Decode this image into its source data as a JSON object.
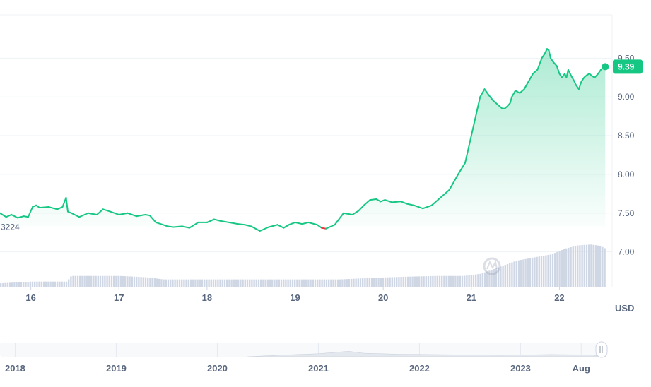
{
  "chart_data": {
    "type": "line",
    "unit": "USD",
    "y_ticks": [
      "9.50",
      "9.00",
      "8.50",
      "8.00",
      "7.50",
      "7.00"
    ],
    "y_tick_values": [
      9.5,
      9.0,
      8.5,
      8.0,
      7.5,
      7.0
    ],
    "ylim": [
      6.55,
      10.05
    ],
    "x_ticks": [
      "16",
      "17",
      "18",
      "19",
      "20",
      "21",
      "22"
    ],
    "x_tick_positions": [
      16,
      17,
      18,
      19,
      20,
      21,
      22
    ],
    "xlim": [
      15.65,
      22.55
    ],
    "baseline_label": "3224",
    "baseline_value": 7.32,
    "current_price_label": "9.39",
    "current_price": 9.39,
    "colors": {
      "up": "#16c784",
      "down": "#ea3943",
      "volume": "#cfd6e4",
      "grid": "#eff2f5"
    },
    "series": [
      {
        "x": [
          15.65,
          15.72,
          15.78,
          15.85,
          15.92,
          15.97,
          16.02,
          16.06,
          16.1,
          16.2,
          16.3,
          16.36,
          16.4,
          16.42,
          16.46,
          16.55,
          16.65,
          16.75,
          16.82,
          16.9,
          17.0,
          17.1,
          17.2,
          17.3,
          17.35,
          17.42,
          17.5,
          17.55,
          17.62,
          17.72,
          17.8,
          17.9,
          18.0,
          18.08,
          18.15,
          18.25,
          18.35,
          18.43,
          18.5,
          18.6,
          18.7,
          18.8,
          18.87,
          18.93,
          19.0,
          19.08,
          19.15,
          19.25,
          19.3,
          19.35,
          19.45,
          19.55,
          19.65,
          19.72,
          19.78,
          19.85,
          19.92,
          19.97,
          20.02,
          20.1,
          20.2,
          20.27,
          20.35,
          20.45,
          20.55,
          20.65,
          20.75,
          20.85,
          20.93,
          21.0,
          21.05,
          21.1,
          21.15,
          21.2,
          21.25,
          21.3,
          21.35,
          21.38,
          21.41,
          21.44,
          21.46,
          21.5,
          21.55,
          21.6,
          21.65,
          21.7,
          21.75,
          21.8,
          21.83,
          21.86,
          21.88,
          21.9,
          21.93,
          21.97,
          22.0,
          22.03,
          22.06,
          22.08,
          22.1,
          22.13,
          22.16,
          22.19,
          22.22,
          22.25,
          22.28,
          22.31,
          22.34,
          22.37,
          22.4,
          22.44,
          22.47,
          22.5,
          22.52
        ],
        "y": [
          7.5,
          7.45,
          7.48,
          7.44,
          7.46,
          7.45,
          7.58,
          7.6,
          7.57,
          7.58,
          7.55,
          7.58,
          7.7,
          7.52,
          7.5,
          7.45,
          7.5,
          7.48,
          7.55,
          7.52,
          7.48,
          7.5,
          7.46,
          7.48,
          7.47,
          7.38,
          7.35,
          7.33,
          7.32,
          7.33,
          7.31,
          7.38,
          7.38,
          7.42,
          7.4,
          7.38,
          7.36,
          7.35,
          7.33,
          7.27,
          7.32,
          7.35,
          7.31,
          7.35,
          7.38,
          7.36,
          7.38,
          7.35,
          7.31,
          7.3,
          7.35,
          7.5,
          7.48,
          7.53,
          7.6,
          7.67,
          7.68,
          7.65,
          7.67,
          7.64,
          7.65,
          7.62,
          7.6,
          7.56,
          7.6,
          7.7,
          7.8,
          8.0,
          8.15,
          8.5,
          8.75,
          9.0,
          9.1,
          9.02,
          8.95,
          8.9,
          8.85,
          8.85,
          8.88,
          8.92,
          9.0,
          9.08,
          9.05,
          9.1,
          9.2,
          9.3,
          9.35,
          9.5,
          9.55,
          9.62,
          9.6,
          9.5,
          9.45,
          9.4,
          9.3,
          9.25,
          9.3,
          9.25,
          9.35,
          9.28,
          9.22,
          9.15,
          9.1,
          9.2,
          9.25,
          9.28,
          9.3,
          9.27,
          9.25,
          9.3,
          9.35,
          9.38,
          9.39
        ]
      }
    ],
    "volume": {
      "x": [
        15.65,
        16.0,
        16.4,
        16.45,
        17.0,
        17.3,
        17.5,
        18.0,
        18.5,
        19.0,
        19.5,
        19.8,
        20.2,
        20.6,
        20.9,
        21.1,
        21.3,
        21.5,
        21.7,
        21.9,
        22.05,
        22.2,
        22.35,
        22.45,
        22.52
      ],
      "v": [
        0.08,
        0.12,
        0.12,
        0.25,
        0.25,
        0.22,
        0.17,
        0.17,
        0.17,
        0.17,
        0.17,
        0.2,
        0.23,
        0.25,
        0.25,
        0.3,
        0.45,
        0.6,
        0.68,
        0.75,
        0.88,
        0.96,
        0.98,
        0.95,
        0.88
      ]
    },
    "navigator": {
      "ticks": [
        "2018",
        "2019",
        "2020",
        "2021",
        "2022",
        "2023",
        "Aug"
      ],
      "tick_positions": [
        2018,
        2019,
        2020,
        2021,
        2022,
        2023,
        2023.6
      ],
      "xlim": [
        2017.85,
        2023.85
      ]
    }
  }
}
